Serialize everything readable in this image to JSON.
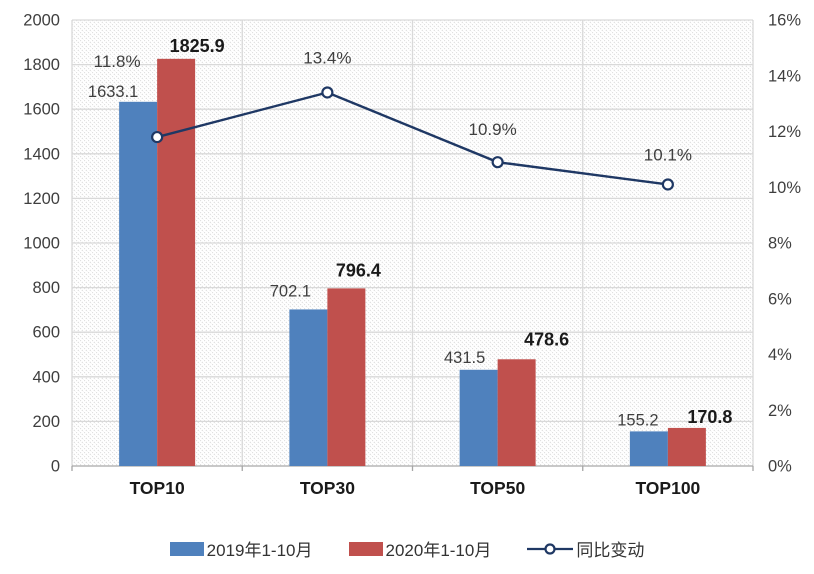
{
  "chart_data": {
    "type": "bar",
    "subtype": "grouped-bars-with-line-overlay",
    "title": "",
    "categories": [
      "TOP10",
      "TOP30",
      "TOP50",
      "TOP100"
    ],
    "series": [
      {
        "name": "2019年1-10月",
        "type": "bar",
        "color": "#4f81bd",
        "axis": "left",
        "values": [
          1633.1,
          702.1,
          431.5,
          155.2
        ],
        "data_labels": [
          "1633.1",
          "702.1",
          "431.5",
          "155.2"
        ]
      },
      {
        "name": "2020年1-10月",
        "type": "bar",
        "color": "#c0504d",
        "axis": "left",
        "values": [
          1825.9,
          796.4,
          478.6,
          170.8
        ],
        "data_labels": [
          "1825.9",
          "796.4",
          "478.6",
          "170.8"
        ]
      },
      {
        "name": "同比变动",
        "type": "line",
        "color": "#1f3864",
        "axis": "right",
        "marker": "open-circle",
        "values": [
          11.8,
          13.4,
          10.9,
          10.1
        ],
        "data_labels": [
          "11.8%",
          "13.4%",
          "10.9%",
          "10.1%"
        ]
      }
    ],
    "left_axis": {
      "min": 0,
      "max": 2000,
      "step": 200,
      "tick_labels": [
        "0",
        "200",
        "400",
        "600",
        "800",
        "1000",
        "1200",
        "1400",
        "1600",
        "1800",
        "2000"
      ]
    },
    "right_axis": {
      "min": 0,
      "max": 16,
      "step": 2,
      "tick_labels": [
        "0%",
        "2%",
        "4%",
        "6%",
        "8%",
        "10%",
        "12%",
        "14%",
        "16%"
      ]
    },
    "grid": true,
    "legend_position": "bottom",
    "plot_background": "diagonal-hatch"
  },
  "colors": {
    "bar_2019": "#4f81bd",
    "bar_2020": "#c0504d",
    "line_yoy": "#1f3864",
    "gridline": "#d9d9d9",
    "hatch": "#dedede",
    "axis_line": "#a6a6a6",
    "tick_text": "#3f3f3f",
    "bold_label_text": "#1a1a1a"
  }
}
